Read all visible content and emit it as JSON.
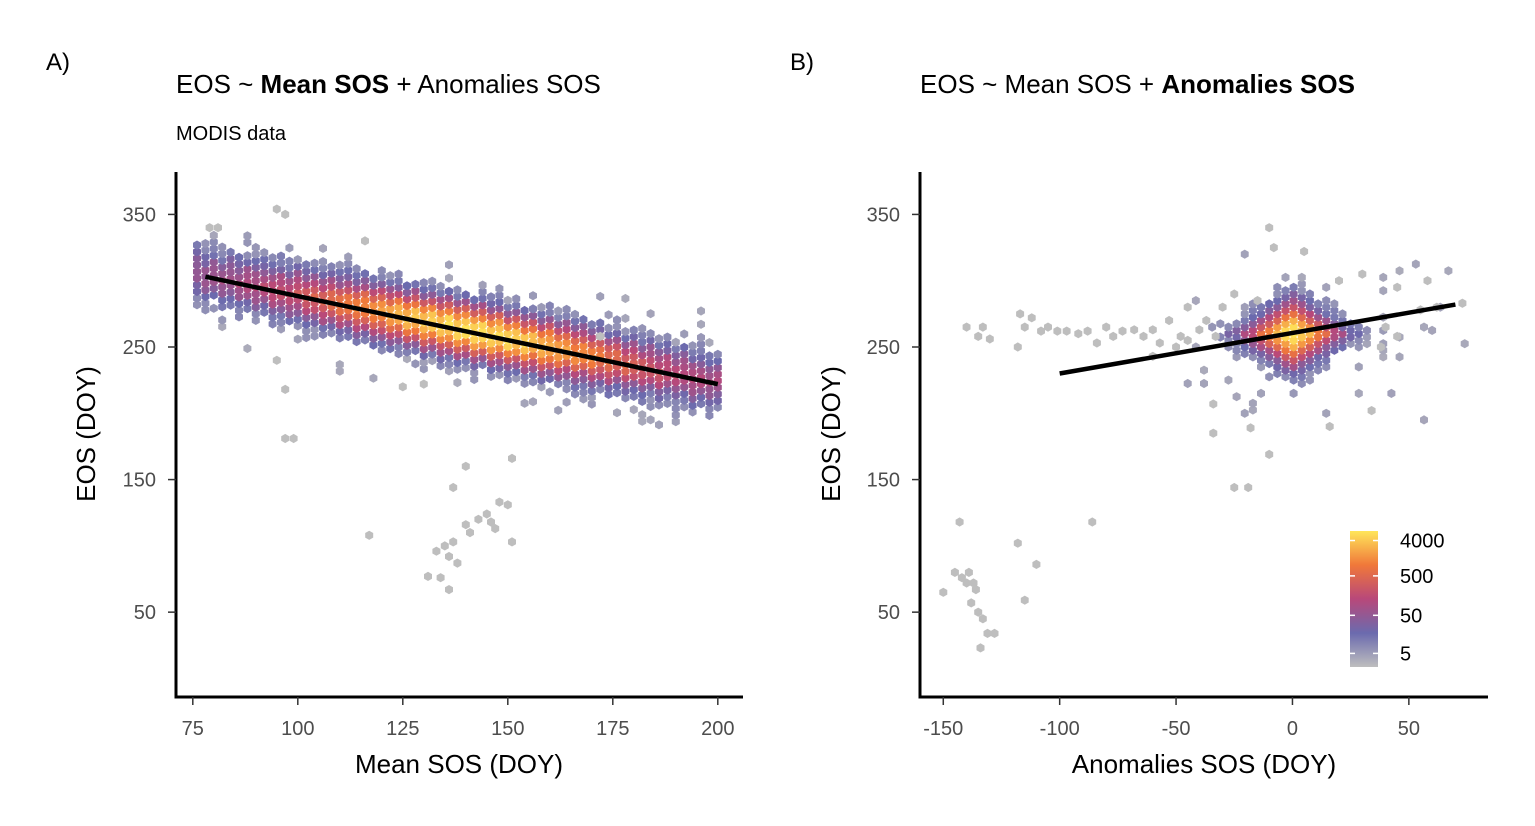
{
  "colors": {
    "ramp": [
      "#bebebe",
      "#6b6aae",
      "#b8487a",
      "#f0783a",
      "#ffe65a"
    ],
    "fit_line": "#000000",
    "axis": "#000000",
    "tick_text": "#4d4d4d"
  },
  "chart_data": [
    {
      "type": "hexbin",
      "tag": "A)",
      "title_parts": [
        {
          "text": "EOS ~ ",
          "bold": false
        },
        {
          "text": "Mean SOS",
          "bold": true
        },
        {
          "text": " + Anomalies SOS",
          "bold": false
        }
      ],
      "subtitle": "MODIS data",
      "xlabel": "Mean SOS (DOY)",
      "ylabel": "EOS (DOY)",
      "xlim": [
        71,
        206
      ],
      "ylim": [
        -14,
        382
      ],
      "xticks": [
        75,
        100,
        125,
        150,
        175,
        200
      ],
      "yticks": [
        50,
        150,
        250,
        350
      ],
      "grid": false,
      "fit_line": {
        "x": [
          78,
          200
        ],
        "y": [
          303,
          222
        ]
      },
      "density": {
        "trend": {
          "x0": 78,
          "y0": 303,
          "slope": -0.664
        },
        "spread_y": 13,
        "peak_x": 142,
        "peak_width": 28,
        "x_range": [
          76,
          200
        ],
        "hex_step_x": 2,
        "hex_step_y": 5
      },
      "outliers": [
        [
          97,
          181
        ],
        [
          99,
          181
        ],
        [
          97,
          218
        ],
        [
          95,
          240
        ],
        [
          117,
          108
        ],
        [
          140,
          160
        ],
        [
          137,
          144
        ],
        [
          151,
          166
        ],
        [
          131,
          77
        ],
        [
          133,
          96
        ],
        [
          135,
          100
        ],
        [
          136,
          67
        ],
        [
          137,
          103
        ],
        [
          138,
          87
        ],
        [
          140,
          116
        ],
        [
          141,
          110
        ],
        [
          143,
          120
        ],
        [
          145,
          124
        ],
        [
          146,
          118
        ],
        [
          147,
          113
        ],
        [
          148,
          133
        ],
        [
          150,
          131
        ],
        [
          151,
          103
        ],
        [
          134,
          76
        ],
        [
          136,
          92
        ],
        [
          95,
          354
        ],
        [
          97,
          350
        ],
        [
          79,
          340
        ],
        [
          81,
          340
        ],
        [
          116,
          330
        ],
        [
          125,
          220
        ],
        [
          130,
          222
        ],
        [
          172,
          258
        ]
      ]
    },
    {
      "type": "hexbin",
      "tag": "B)",
      "title_parts": [
        {
          "text": "EOS ~ Mean SOS + ",
          "bold": false
        },
        {
          "text": "Anomalies SOS",
          "bold": true
        }
      ],
      "subtitle": "",
      "xlabel": "Anomalies SOS (DOY)",
      "ylabel": "EOS (DOY)",
      "xlim": [
        -160,
        84
      ],
      "ylim": [
        -14,
        382
      ],
      "xticks": [
        -150,
        -100,
        -50,
        0,
        50
      ],
      "yticks": [
        50,
        150,
        250,
        350
      ],
      "grid": false,
      "fit_line": {
        "x": [
          -100,
          70
        ],
        "y": [
          230,
          282
        ]
      },
      "density": {
        "center": [
          0,
          260
        ],
        "spread_x": 12,
        "spread_y": 14,
        "x_range": [
          -45,
          75
        ],
        "y_range": [
          195,
          320
        ],
        "hex_step_x": 3.5,
        "hex_step_y": 5
      },
      "outliers": [
        [
          -150,
          65
        ],
        [
          -145,
          80
        ],
        [
          -143,
          118
        ],
        [
          -142,
          76
        ],
        [
          -140,
          72
        ],
        [
          -139,
          80
        ],
        [
          -138,
          57
        ],
        [
          -137,
          72
        ],
        [
          -136,
          67
        ],
        [
          -135,
          50
        ],
        [
          -134,
          23
        ],
        [
          -133,
          45
        ],
        [
          -131,
          34
        ],
        [
          -128,
          34
        ],
        [
          -118,
          102
        ],
        [
          -115,
          59
        ],
        [
          -110,
          86
        ],
        [
          -86,
          118
        ],
        [
          -25,
          144
        ],
        [
          -19,
          144
        ],
        [
          -10,
          169
        ],
        [
          -34,
          185
        ],
        [
          -34,
          207
        ],
        [
          -18,
          189
        ],
        [
          16,
          190
        ],
        [
          34,
          202
        ],
        [
          -140,
          265
        ],
        [
          -135,
          258
        ],
        [
          -133,
          265
        ],
        [
          -130,
          256
        ],
        [
          -118,
          250
        ],
        [
          -117,
          275
        ],
        [
          -115,
          265
        ],
        [
          -112,
          272
        ],
        [
          -108,
          262
        ],
        [
          -105,
          265
        ],
        [
          -101,
          262
        ],
        [
          -97,
          262
        ],
        [
          -92,
          260
        ],
        [
          -88,
          262
        ],
        [
          -84,
          253
        ],
        [
          -80,
          265
        ],
        [
          -77,
          258
        ],
        [
          -73,
          262
        ],
        [
          -68,
          263
        ],
        [
          -64,
          258
        ],
        [
          -60,
          263
        ],
        [
          -57,
          253
        ],
        [
          -53,
          270
        ],
        [
          -48,
          258
        ],
        [
          -45,
          280
        ],
        [
          -40,
          263
        ],
        [
          -37,
          270
        ],
        [
          -33,
          258
        ],
        [
          -30,
          280
        ],
        [
          -25,
          290
        ],
        [
          -15,
          285
        ],
        [
          -8,
          325
        ],
        [
          -10,
          340
        ],
        [
          5,
          322
        ],
        [
          -60,
          243
        ],
        [
          -45,
          255
        ],
        [
          -50,
          250
        ],
        [
          62,
          280
        ],
        [
          73,
          283
        ],
        [
          55,
          278
        ],
        [
          45,
          295
        ],
        [
          58,
          300
        ],
        [
          40,
          265
        ],
        [
          45,
          258
        ],
        [
          38,
          250
        ],
        [
          30,
          305
        ],
        [
          20,
          300
        ]
      ]
    }
  ],
  "legend": {
    "breaks": [
      "4000",
      "500",
      "50",
      "5"
    ],
    "break_fractions": [
      0.93,
      0.67,
      0.38,
      0.1
    ]
  }
}
